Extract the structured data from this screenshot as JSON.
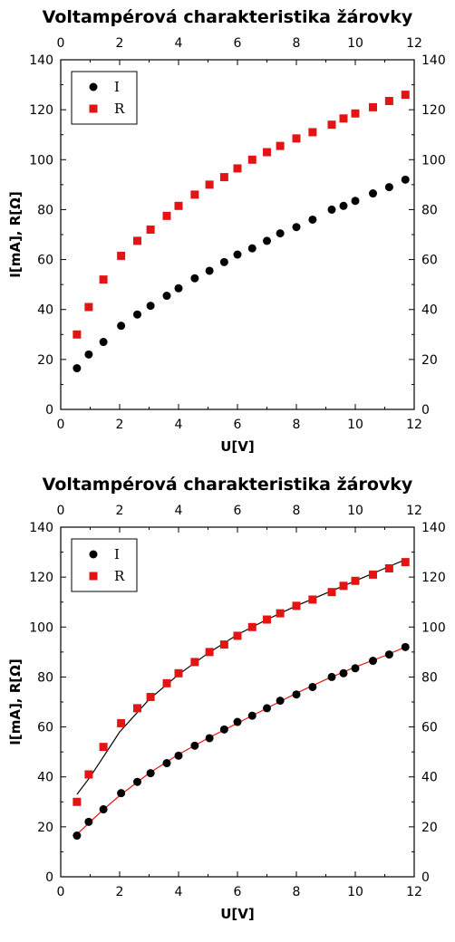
{
  "chart_data": [
    {
      "type": "scatter",
      "title": "Voltampérová charakteristika žárovky",
      "xlabel": "U[V]",
      "ylabel": "I[mA], R[Ω]",
      "xlim": [
        0,
        12
      ],
      "ylim": [
        0,
        140
      ],
      "xticks": [
        0,
        2,
        4,
        6,
        8,
        10,
        12
      ],
      "yticks": [
        0,
        20,
        40,
        60,
        80,
        100,
        120,
        140
      ],
      "mirror_axes": true,
      "grid": false,
      "legend": "top-left",
      "series": [
        {
          "name": "I",
          "marker": "circle",
          "color": "#000000",
          "x": [
            0.55,
            0.95,
            1.45,
            2.05,
            2.6,
            3.05,
            3.6,
            4.0,
            4.55,
            5.05,
            5.55,
            6.0,
            6.5,
            7.0,
            7.45,
            8.0,
            8.55,
            9.2,
            9.6,
            10.0,
            10.6,
            11.15,
            11.7
          ],
          "y": [
            16.5,
            22,
            27,
            33.5,
            38,
            41.5,
            45.5,
            48.5,
            52.5,
            55.5,
            59,
            62,
            64.5,
            67.5,
            70.5,
            73,
            76,
            80,
            81.5,
            83.5,
            86.5,
            89,
            92
          ]
        },
        {
          "name": "R",
          "marker": "square",
          "color": "#e31414",
          "x": [
            0.55,
            0.95,
            1.45,
            2.05,
            2.6,
            3.05,
            3.6,
            4.0,
            4.55,
            5.05,
            5.55,
            6.0,
            6.5,
            7.0,
            7.45,
            8.0,
            8.55,
            9.2,
            9.6,
            10.0,
            10.6,
            11.15,
            11.7
          ],
          "y": [
            30,
            41,
            52,
            61.5,
            67.5,
            72,
            77.5,
            81.5,
            86,
            90,
            93,
            96.5,
            100,
            103,
            105.5,
            108.5,
            111,
            114,
            116.5,
            118.5,
            121,
            123.5,
            126
          ]
        }
      ]
    },
    {
      "type": "scatter",
      "title": "Voltampérová charakteristika žárovky",
      "xlabel": "U[V]",
      "ylabel": "I[mA], R[Ω]",
      "xlim": [
        0,
        12
      ],
      "ylim": [
        0,
        140
      ],
      "xticks": [
        0,
        2,
        4,
        6,
        8,
        10,
        12
      ],
      "yticks": [
        0,
        20,
        40,
        60,
        80,
        100,
        120,
        140
      ],
      "mirror_axes": true,
      "grid": false,
      "legend": "top-left",
      "series": [
        {
          "name": "I",
          "marker": "circle",
          "color": "#000000",
          "fit_line_color": "#e31414",
          "x": [
            0.55,
            0.95,
            1.45,
            2.05,
            2.6,
            3.05,
            3.6,
            4.0,
            4.55,
            5.05,
            5.55,
            6.0,
            6.5,
            7.0,
            7.45,
            8.0,
            8.55,
            9.2,
            9.6,
            10.0,
            10.6,
            11.15,
            11.7
          ],
          "y": [
            16.5,
            22,
            27,
            33.5,
            38,
            41.5,
            45.5,
            48.5,
            52.5,
            55.5,
            59,
            62,
            64.5,
            67.5,
            70.5,
            73,
            76,
            80,
            81.5,
            83.5,
            86.5,
            89,
            92
          ]
        },
        {
          "name": "R",
          "marker": "square",
          "color": "#e31414",
          "fit_line_color": "#000000",
          "x": [
            0.55,
            0.95,
            1.45,
            2.05,
            2.6,
            3.05,
            3.6,
            4.0,
            4.55,
            5.05,
            5.55,
            6.0,
            6.5,
            7.0,
            7.45,
            8.0,
            8.55,
            9.2,
            9.6,
            10.0,
            10.6,
            11.15,
            11.7
          ],
          "y": [
            30,
            41,
            52,
            61.5,
            67.5,
            72,
            77.5,
            81.5,
            86,
            90,
            93,
            96.5,
            100,
            103,
            105.5,
            108.5,
            111,
            114,
            116.5,
            118.5,
            121,
            123.5,
            126
          ]
        }
      ],
      "fit_curves": [
        {
          "color": "#e31414",
          "x": [
            0.55,
            1.0,
            1.5,
            2.0,
            3.0,
            4.0,
            5.0,
            6.0,
            7.0,
            8.0,
            9.0,
            10.0,
            11.0,
            11.7
          ],
          "y": [
            17,
            22,
            27.5,
            32.5,
            41.5,
            49,
            55.5,
            61.5,
            67.5,
            73.5,
            79,
            84,
            88.5,
            92
          ]
        },
        {
          "color": "#000000",
          "x": [
            0.55,
            1.0,
            1.5,
            2.0,
            3.0,
            4.0,
            5.0,
            6.0,
            7.0,
            8.0,
            9.0,
            10.0,
            11.0,
            11.7
          ],
          "y": [
            33,
            40,
            49,
            58,
            71,
            81,
            89.5,
            97,
            103,
            108.5,
            113.5,
            118.5,
            123.5,
            127
          ]
        }
      ]
    }
  ]
}
